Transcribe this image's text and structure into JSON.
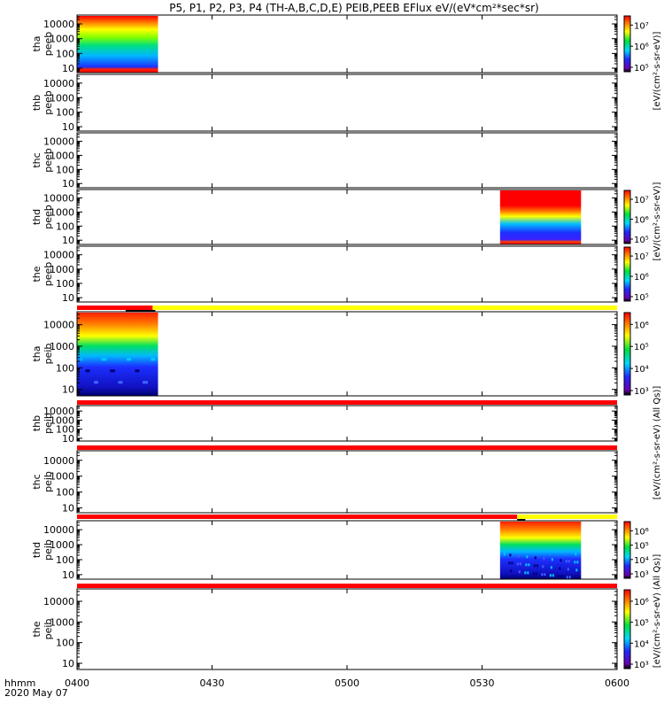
{
  "title": "P5, P1, P2, P3, P4 (TH-A,B,C,D,E) PEIB,PEEB EFlux eV/(eV*cm²*sec*sr)",
  "x_axis": {
    "label_line1": "hhmm",
    "label_line2": "2020 May 07",
    "ticks": [
      "0400",
      "0430",
      "0500",
      "0530",
      "0600"
    ]
  },
  "colorbars": {
    "electron_units": "[eV/(cm²-s-sr-eV)]",
    "ion_units": "[eV/(cm²-s-sr-eV) (All Qs)]",
    "electron_ticks": [
      "10⁵",
      "10⁶",
      "10⁷"
    ],
    "ion_ticks": [
      "10³",
      "10⁴",
      "10⁵",
      "10⁶"
    ]
  },
  "chart_data": {
    "type": "heatmap",
    "x_unit": "UT hhmm",
    "x_range": [
      "0400",
      "0600"
    ],
    "y_scale": "log",
    "y_tick_labels": [
      "10",
      "100",
      "1000",
      "10000"
    ],
    "colormap": "rainbow (purple-blue-cyan-green-yellow-red)",
    "panels": [
      {
        "label": "tha peeb",
        "species": "electron",
        "data_intervals": [
          {
            "start": "0400",
            "end": "0418"
          }
        ],
        "colorbar": true
      },
      {
        "label": "thb peeb",
        "species": "electron",
        "data_intervals": [],
        "colorbar": false
      },
      {
        "label": "thc peeb",
        "species": "electron",
        "data_intervals": [],
        "colorbar": false
      },
      {
        "label": "thd peeb",
        "species": "electron",
        "data_intervals": [
          {
            "start": "0534",
            "end": "0552"
          }
        ],
        "colorbar": true
      },
      {
        "label": "the peeb",
        "species": "electron",
        "data_intervals": [],
        "colorbar": true
      },
      {
        "label": "tha peib",
        "species": "ion",
        "data_intervals": [
          {
            "start": "0400",
            "end": "0418"
          }
        ],
        "colorbar": true
      },
      {
        "label": "thb peib",
        "species": "ion",
        "data_intervals": [],
        "colorbar": false
      },
      {
        "label": "thc peib",
        "species": "ion",
        "data_intervals": [],
        "colorbar": false
      },
      {
        "label": "thd peib",
        "species": "ion",
        "data_intervals": [
          {
            "start": "0534",
            "end": "0552"
          }
        ],
        "colorbar": true
      },
      {
        "label": "the peib",
        "species": "ion",
        "data_intervals": [],
        "colorbar": true
      }
    ]
  }
}
